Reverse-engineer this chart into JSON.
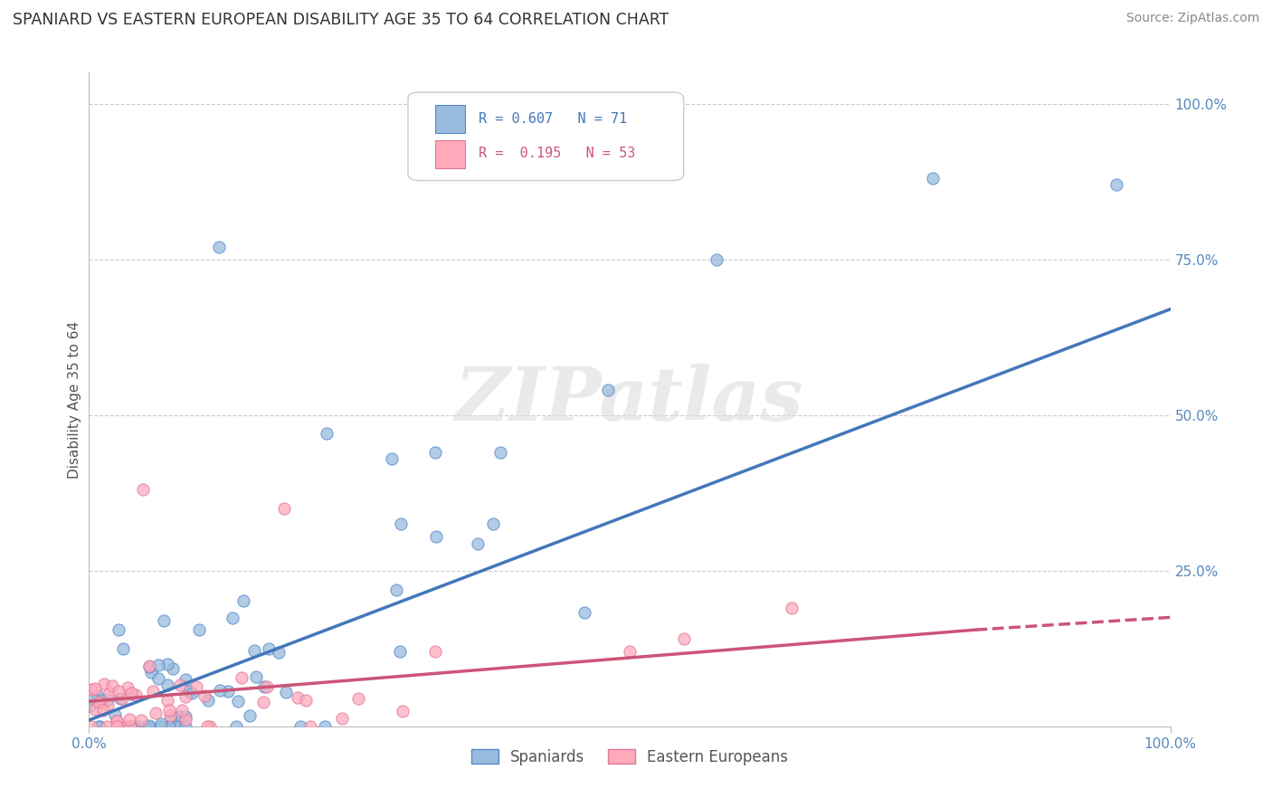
{
  "title": "SPANIARD VS EASTERN EUROPEAN DISABILITY AGE 35 TO 64 CORRELATION CHART",
  "source": "Source: ZipAtlas.com",
  "ylabel": "Disability Age 35 to 64",
  "legend_R_blue": "R = 0.607",
  "legend_N_blue": "N = 71",
  "legend_R_pink": "R =  0.195",
  "legend_N_pink": "N = 53",
  "blue_fill": "#99BBDD",
  "blue_edge": "#5588CC",
  "pink_fill": "#FFAABB",
  "pink_edge": "#DD7799",
  "blue_line_color": "#4477BB",
  "pink_line_color": "#CC5577",
  "watermark": "ZIPatlas",
  "grid_color": "#CCCCCC",
  "tick_color": "#5588BB",
  "title_color": "#333333",
  "source_color": "#888888"
}
